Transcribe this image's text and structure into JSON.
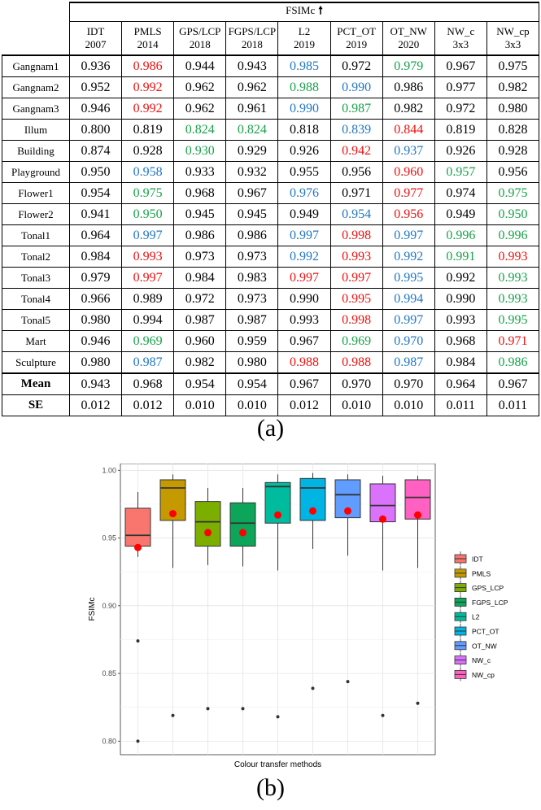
{
  "table": {
    "group_header": "FSIMc",
    "group_arrow": "🠕",
    "methods": [
      {
        "name": "IDT",
        "year": "2007"
      },
      {
        "name": "PMLS",
        "year": "2014"
      },
      {
        "name": "GPS/LCP",
        "year": "2018"
      },
      {
        "name": "FGPS/LCP",
        "year": "2018"
      },
      {
        "name": "L2",
        "year": "2019"
      },
      {
        "name": "PCT_OT",
        "year": "2019"
      },
      {
        "name": "OT_NW",
        "year": "2020"
      },
      {
        "name": "NW_c",
        "year": "3x3"
      },
      {
        "name": "NW_cp",
        "year": "3x3"
      }
    ],
    "rows": [
      {
        "label": "Gangnam1",
        "values": [
          "0.936",
          "0.986",
          "0.944",
          "0.943",
          "0.985",
          "0.972",
          "0.979",
          "0.967",
          "0.975"
        ],
        "colors": [
          "",
          "r",
          "",
          "",
          "b",
          "",
          "g",
          "",
          ""
        ]
      },
      {
        "label": "Gangnam2",
        "values": [
          "0.952",
          "0.992",
          "0.962",
          "0.962",
          "0.988",
          "0.990",
          "0.986",
          "0.977",
          "0.982"
        ],
        "colors": [
          "",
          "r",
          "",
          "",
          "g",
          "b",
          "",
          "",
          ""
        ]
      },
      {
        "label": "Gangnam3",
        "values": [
          "0.946",
          "0.992",
          "0.962",
          "0.961",
          "0.990",
          "0.987",
          "0.982",
          "0.972",
          "0.980"
        ],
        "colors": [
          "",
          "r",
          "",
          "",
          "b",
          "g",
          "",
          "",
          ""
        ]
      },
      {
        "label": "Illum",
        "values": [
          "0.800",
          "0.819",
          "0.824",
          "0.824",
          "0.818",
          "0.839",
          "0.844",
          "0.819",
          "0.828"
        ],
        "colors": [
          "",
          "",
          "g",
          "g",
          "",
          "b",
          "r",
          "",
          ""
        ]
      },
      {
        "label": "Building",
        "values": [
          "0.874",
          "0.928",
          "0.930",
          "0.929",
          "0.926",
          "0.942",
          "0.937",
          "0.926",
          "0.928"
        ],
        "colors": [
          "",
          "",
          "g",
          "",
          "",
          "r",
          "b",
          "",
          ""
        ]
      },
      {
        "label": "Playground",
        "values": [
          "0.950",
          "0.958",
          "0.933",
          "0.932",
          "0.955",
          "0.956",
          "0.960",
          "0.957",
          "0.956"
        ],
        "colors": [
          "",
          "b",
          "",
          "",
          "",
          "",
          "r",
          "g",
          ""
        ]
      },
      {
        "label": "Flower1",
        "values": [
          "0.954",
          "0.975",
          "0.968",
          "0.967",
          "0.976",
          "0.971",
          "0.977",
          "0.974",
          "0.975"
        ],
        "colors": [
          "",
          "g",
          "",
          "",
          "b",
          "",
          "r",
          "",
          "g"
        ]
      },
      {
        "label": "Flower2",
        "values": [
          "0.941",
          "0.950",
          "0.945",
          "0.945",
          "0.949",
          "0.954",
          "0.956",
          "0.949",
          "0.950"
        ],
        "colors": [
          "",
          "g",
          "",
          "",
          "",
          "b",
          "r",
          "",
          "g"
        ]
      },
      {
        "label": "Tonal1",
        "values": [
          "0.964",
          "0.997",
          "0.986",
          "0.986",
          "0.997",
          "0.998",
          "0.997",
          "0.996",
          "0.996"
        ],
        "colors": [
          "",
          "b",
          "",
          "",
          "b",
          "r",
          "b",
          "g",
          "g"
        ]
      },
      {
        "label": "Tonal2",
        "values": [
          "0.984",
          "0.993",
          "0.973",
          "0.973",
          "0.992",
          "0.993",
          "0.992",
          "0.991",
          "0.993"
        ],
        "colors": [
          "",
          "r",
          "",
          "",
          "b",
          "r",
          "b",
          "g",
          "r"
        ]
      },
      {
        "label": "Tonal3",
        "values": [
          "0.979",
          "0.997",
          "0.984",
          "0.983",
          "0.997",
          "0.997",
          "0.995",
          "0.992",
          "0.993"
        ],
        "colors": [
          "",
          "r",
          "",
          "",
          "r",
          "r",
          "b",
          "",
          "g"
        ]
      },
      {
        "label": "Tonal4",
        "values": [
          "0.966",
          "0.989",
          "0.972",
          "0.973",
          "0.990",
          "0.995",
          "0.994",
          "0.990",
          "0.993"
        ],
        "colors": [
          "",
          "",
          "",
          "",
          "",
          "r",
          "b",
          "",
          "g"
        ]
      },
      {
        "label": "Tonal5",
        "values": [
          "0.980",
          "0.994",
          "0.987",
          "0.987",
          "0.993",
          "0.998",
          "0.997",
          "0.993",
          "0.995"
        ],
        "colors": [
          "",
          "",
          "",
          "",
          "",
          "r",
          "b",
          "",
          "g"
        ]
      },
      {
        "label": "Mart",
        "values": [
          "0.946",
          "0.969",
          "0.960",
          "0.959",
          "0.967",
          "0.969",
          "0.970",
          "0.968",
          "0.971"
        ],
        "colors": [
          "",
          "g",
          "",
          "",
          "",
          "g",
          "b",
          "",
          "r"
        ]
      },
      {
        "label": "Sculpture",
        "values": [
          "0.980",
          "0.987",
          "0.982",
          "0.980",
          "0.988",
          "0.988",
          "0.987",
          "0.984",
          "0.986"
        ],
        "colors": [
          "",
          "b",
          "",
          "",
          "r",
          "r",
          "b",
          "",
          "g"
        ]
      }
    ],
    "summary": [
      {
        "label": "Mean",
        "values": [
          "0.943",
          "0.968",
          "0.954",
          "0.954",
          "0.967",
          "0.970",
          "0.970",
          "0.964",
          "0.967"
        ]
      },
      {
        "label": "SE",
        "values": [
          "0.012",
          "0.012",
          "0.010",
          "0.010",
          "0.012",
          "0.010",
          "0.010",
          "0.011",
          "0.011"
        ]
      }
    ],
    "highlight_colors": {
      "r": "#ee1111",
      "g": "#16a34a",
      "b": "#1f77c4"
    }
  },
  "captions": {
    "a": "(a)",
    "b": "(b)"
  },
  "chart_data": {
    "type": "box",
    "xlabel": "Colour transfer methods",
    "ylabel": "FSIMc",
    "ylim": [
      0.79,
      1.005
    ],
    "yticks": [
      "0.80",
      "0.85",
      "0.90",
      "0.95",
      "1.00"
    ],
    "grid": true,
    "legend_position": "right",
    "series": [
      {
        "name": "IDT",
        "color": "#f8766d",
        "q1": 0.944,
        "median": 0.952,
        "q3": 0.972,
        "whisker_low": 0.936,
        "whisker_high": 0.984,
        "mean": 0.943,
        "outliers": [
          0.874,
          0.8
        ]
      },
      {
        "name": "PMLS",
        "color": "#c49a00",
        "q1": 0.963,
        "median": 0.987,
        "q3": 0.993,
        "whisker_low": 0.928,
        "whisker_high": 0.997,
        "mean": 0.968,
        "outliers": [
          0.819
        ]
      },
      {
        "name": "GPS_LCP",
        "color": "#7cae00",
        "q1": 0.944,
        "median": 0.962,
        "q3": 0.977,
        "whisker_low": 0.93,
        "whisker_high": 0.987,
        "mean": 0.954,
        "outliers": [
          0.824
        ]
      },
      {
        "name": "FGPS_LCP",
        "color": "#0ca55a",
        "q1": 0.944,
        "median": 0.961,
        "q3": 0.976,
        "whisker_low": 0.929,
        "whisker_high": 0.987,
        "mean": 0.954,
        "outliers": [
          0.824
        ]
      },
      {
        "name": "L2",
        "color": "#00bc9e",
        "q1": 0.961,
        "median": 0.988,
        "q3": 0.991,
        "whisker_low": 0.926,
        "whisker_high": 0.997,
        "mean": 0.967,
        "outliers": [
          0.818
        ]
      },
      {
        "name": "PCT_OT",
        "color": "#00b4e4",
        "q1": 0.963,
        "median": 0.987,
        "q3": 0.994,
        "whisker_low": 0.942,
        "whisker_high": 0.998,
        "mean": 0.97,
        "outliers": [
          0.839
        ]
      },
      {
        "name": "OT_NW",
        "color": "#619cff",
        "q1": 0.965,
        "median": 0.982,
        "q3": 0.993,
        "whisker_low": 0.937,
        "whisker_high": 0.997,
        "mean": 0.97,
        "outliers": [
          0.844
        ]
      },
      {
        "name": "NW_c",
        "color": "#da72fb",
        "q1": 0.962,
        "median": 0.974,
        "q3": 0.99,
        "whisker_low": 0.926,
        "whisker_high": 0.996,
        "mean": 0.964,
        "outliers": [
          0.819
        ]
      },
      {
        "name": "NW_cp",
        "color": "#ff61c3",
        "q1": 0.964,
        "median": 0.98,
        "q3": 0.993,
        "whisker_low": 0.928,
        "whisker_high": 0.996,
        "mean": 0.967,
        "outliers": [
          0.828
        ]
      }
    ]
  }
}
